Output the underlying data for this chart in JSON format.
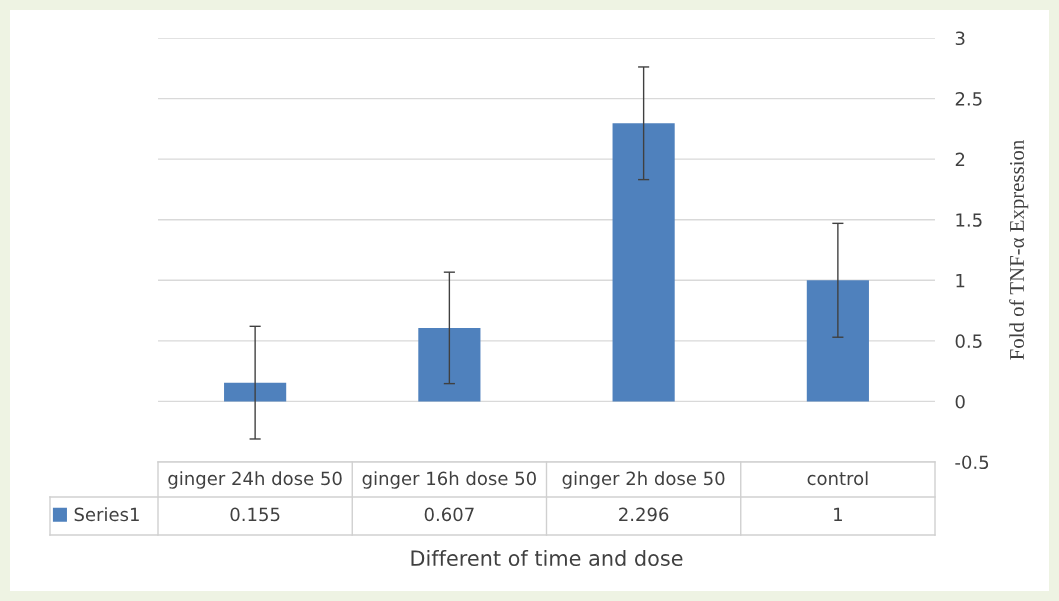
{
  "chart_data": {
    "type": "bar",
    "xlabel": "Different of time and dose",
    "ylabel": "Fold of TNF-α Expression",
    "categories": [
      "ginger 24h dose 50",
      "ginger 16h dose 50",
      "ginger 2h dose 50",
      "control"
    ],
    "series": [
      {
        "name": "Series1",
        "color": "#4f81bd",
        "values": [
          0.155,
          0.607,
          2.296,
          1
        ],
        "errors": [
          0.465,
          0.46,
          0.465,
          0.47
        ]
      }
    ],
    "ylim": [
      -0.5,
      3
    ],
    "yticks": [
      -0.5,
      0,
      0.5,
      1,
      1.5,
      2,
      2.5,
      3
    ],
    "grid": "y",
    "legend": "bottom",
    "data_labels": true
  }
}
